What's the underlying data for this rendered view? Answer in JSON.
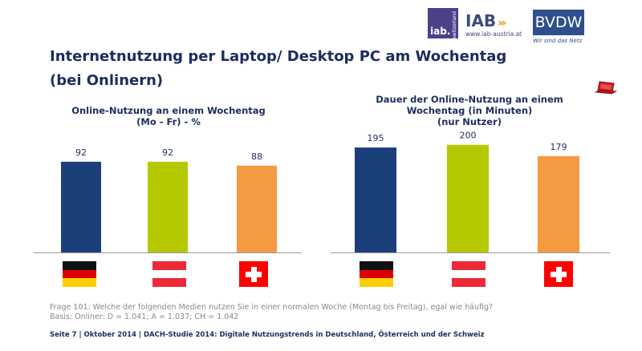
{
  "logos": {
    "iab_ch_big": "iab.",
    "iab_ch_small": "switzerland",
    "iab_at": "IAB",
    "iab_at_url": "www.iab-austria.at",
    "bvdw": "BVDW",
    "bvdw_tagline": "Wir sind das Netz"
  },
  "title_line1": "Internetnutzung per Laptop/ Desktop PC am Wochentag",
  "title_line2": "(bei Onlinern)",
  "colors": {
    "de": "#1b4079",
    "at": "#b5c800",
    "ch": "#f39a43",
    "axis": "#999999"
  },
  "chart_data": [
    {
      "type": "bar",
      "title_lines": [
        "Online-Nutzung an einem Wochentag",
        "(Mo - Fr) - %"
      ],
      "categories": [
        "Deutschland",
        "Österreich",
        "Schweiz"
      ],
      "values": [
        92,
        92,
        88
      ],
      "value_labels": [
        "92",
        "92",
        "88"
      ],
      "ylim": [
        0,
        100
      ],
      "grid": false,
      "xlabel": "",
      "ylabel": ""
    },
    {
      "type": "bar",
      "title_lines": [
        "Dauer der Online-Nutzung an einem",
        "Wochentag (in Minuten)",
        "(nur Nutzer)"
      ],
      "categories": [
        "Deutschland",
        "Österreich",
        "Schweiz"
      ],
      "values": [
        195,
        200,
        179
      ],
      "value_labels": [
        "195",
        "200",
        "179"
      ],
      "ylim": [
        0,
        210
      ],
      "grid": false,
      "xlabel": "",
      "ylabel": ""
    }
  ],
  "flags": [
    "de",
    "at",
    "ch"
  ],
  "footnotes": {
    "question": "Frage 101: Welche der folgenden Medien nutzen Sie in einer normalen Woche (Montag bis Freitag), egal wie häufig?",
    "base": "Basis: Onliner: D = 1.041; A = 1.037; CH = 1.042"
  },
  "footer": "Seite 7 | Oktober 2014 | DACH-Studie 2014: Digitale Nutzungstrends in Deutschland, Österreich und der Schweiz",
  "icons": {
    "device": "laptop-icon"
  }
}
